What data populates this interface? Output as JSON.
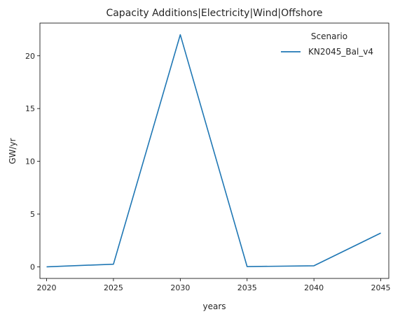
{
  "chart_data": {
    "type": "line",
    "title": "Capacity Additions|Electricity|Wind|Offshore",
    "xlabel": "years",
    "ylabel": "GW/yr",
    "x": [
      2020,
      2025,
      2030,
      2035,
      2040,
      2045
    ],
    "series": [
      {
        "name": "KN2045_Bal_v4",
        "values": [
          0.0,
          0.25,
          22.0,
          0.02,
          0.1,
          3.2
        ],
        "color": "#1f77b4"
      }
    ],
    "xlim": [
      2019.5,
      2045.6
    ],
    "ylim": [
      -1.1,
      23.1
    ],
    "xticks": [
      "2020",
      "2025",
      "2030",
      "2035",
      "2040",
      "2045"
    ],
    "yticks": [
      "0",
      "5",
      "10",
      "15",
      "20"
    ],
    "legend": {
      "title": "Scenario",
      "placement": "top-right"
    },
    "grid": false
  }
}
